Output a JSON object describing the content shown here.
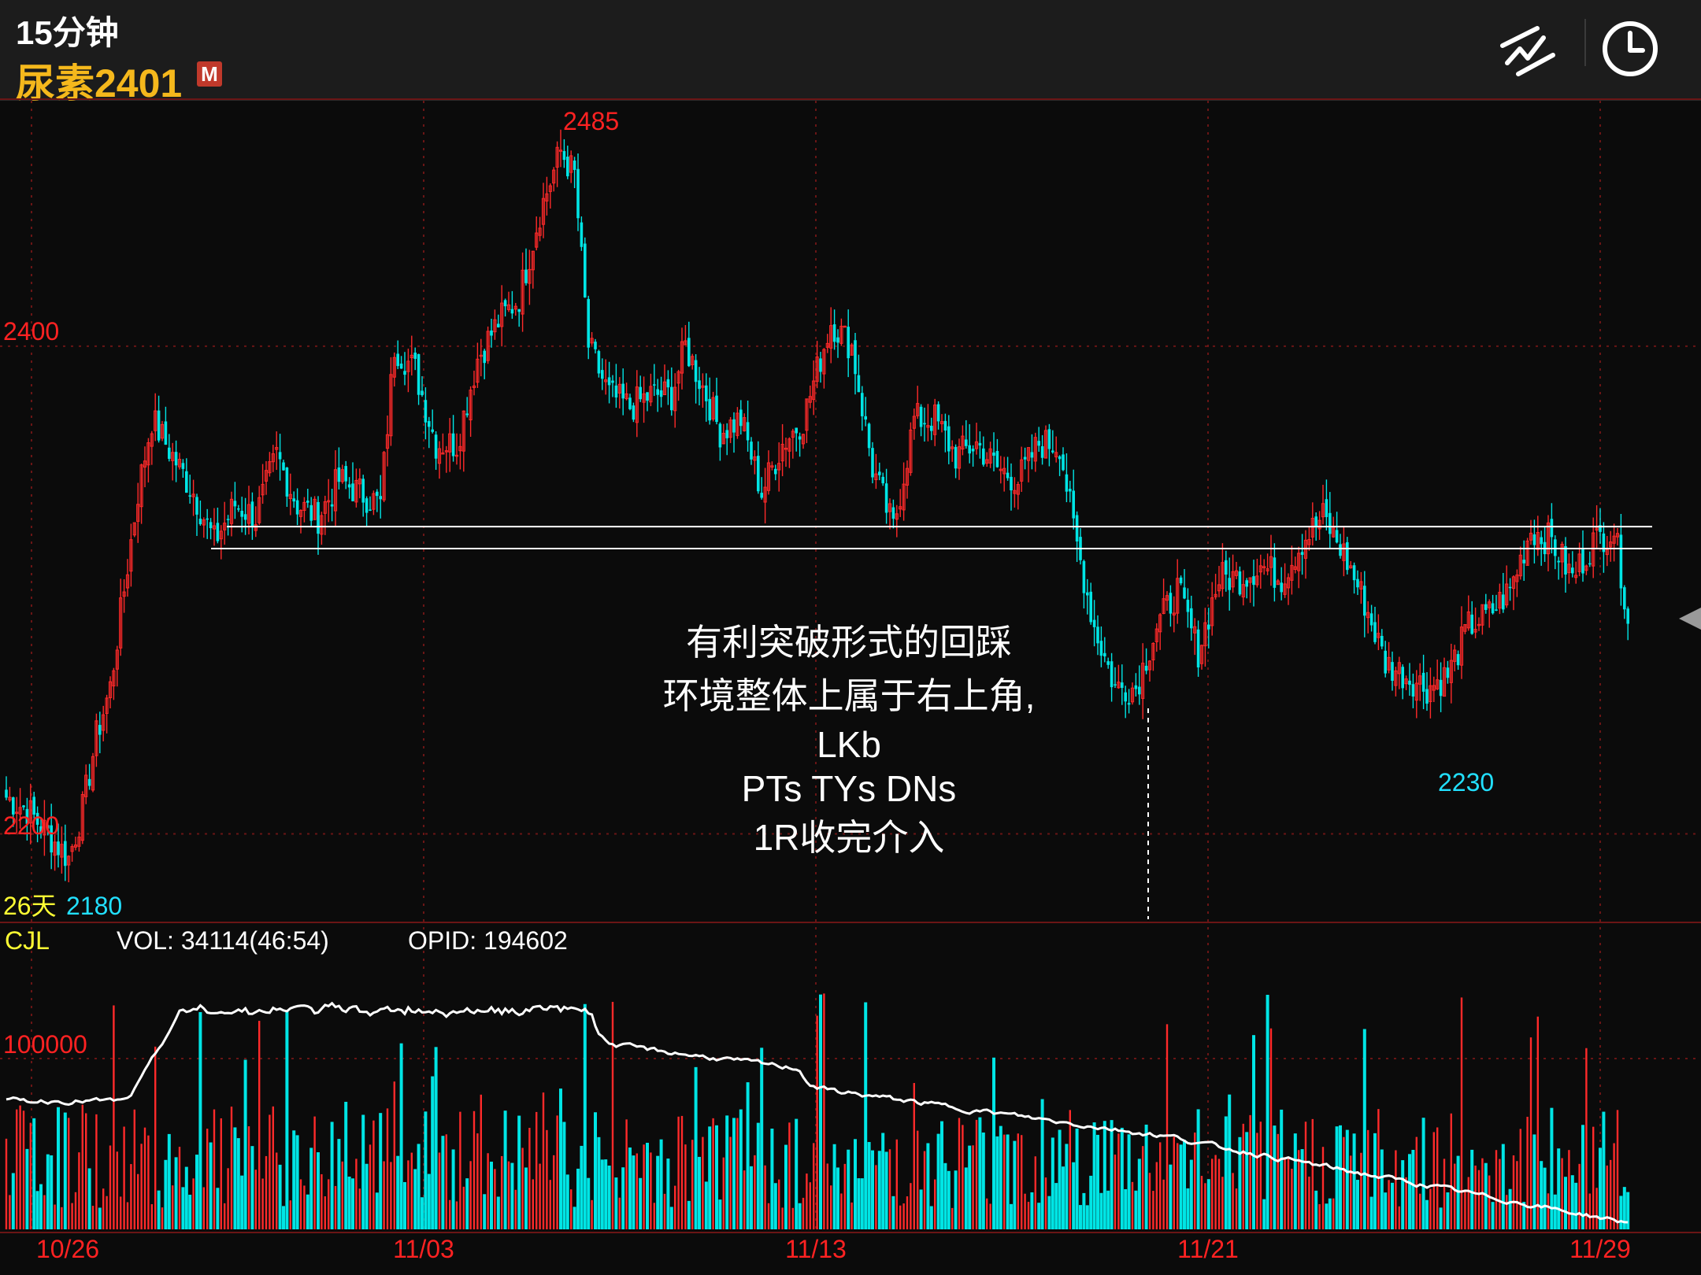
{
  "header": {
    "period": "15分钟",
    "symbol": "尿素2401",
    "badge": "M",
    "draw_icon": "trendline-drawing-icon",
    "time_icon": "clock-icon"
  },
  "colors": {
    "up": "#ff2a2a",
    "down": "#00e5e5",
    "grid": "#6a1515",
    "label_red": "#ff2222",
    "label_cyan": "#22e0ff",
    "label_yellow": "#ffff33",
    "white": "#ffffff"
  },
  "price_panel": {
    "high_label": "2485",
    "low_label": "2230",
    "range_days": "26天",
    "range_low": "2180",
    "ylim": [
      2165,
      2500
    ],
    "gridline_values": [
      2400,
      2200
    ],
    "gridline_labels": [
      "2400",
      "2200"
    ],
    "support_line_upper": 2326,
    "support_line_lower": 2317
  },
  "annotation": [
    "有利突破形式的回踩",
    "环境整体上属于右上角,",
    "LKb",
    "PTs TYs DNs",
    "1R收完介入"
  ],
  "volume_panel": {
    "name": "CJL",
    "vol_text": "VOL: 34114(46:54)",
    "opid_text": "OPID: 194602",
    "gridline_label": "100000"
  },
  "chart_data": {
    "type": "candlestick",
    "x_labels": [
      "10/26",
      "11/03",
      "11/13",
      "11/21",
      "11/29"
    ],
    "price_anchors": [
      [
        0,
        2215
      ],
      [
        6,
        2210
      ],
      [
        12,
        2200
      ],
      [
        18,
        2190
      ],
      [
        22,
        2210
      ],
      [
        26,
        2240
      ],
      [
        30,
        2260
      ],
      [
        34,
        2300
      ],
      [
        38,
        2340
      ],
      [
        42,
        2370
      ],
      [
        48,
        2355
      ],
      [
        54,
        2340
      ],
      [
        60,
        2320
      ],
      [
        66,
        2335
      ],
      [
        72,
        2330
      ],
      [
        78,
        2355
      ],
      [
        84,
        2335
      ],
      [
        90,
        2330
      ],
      [
        96,
        2345
      ],
      [
        102,
        2340
      ],
      [
        108,
        2335
      ],
      [
        112,
        2400
      ],
      [
        118,
        2390
      ],
      [
        124,
        2360
      ],
      [
        130,
        2360
      ],
      [
        136,
        2395
      ],
      [
        142,
        2410
      ],
      [
        148,
        2420
      ],
      [
        154,
        2455
      ],
      [
        160,
        2480
      ],
      [
        164,
        2470
      ],
      [
        168,
        2400
      ],
      [
        174,
        2380
      ],
      [
        180,
        2375
      ],
      [
        186,
        2380
      ],
      [
        192,
        2380
      ],
      [
        196,
        2400
      ],
      [
        202,
        2380
      ],
      [
        206,
        2365
      ],
      [
        212,
        2370
      ],
      [
        218,
        2340
      ],
      [
        224,
        2360
      ],
      [
        230,
        2370
      ],
      [
        238,
        2410
      ],
      [
        244,
        2400
      ],
      [
        250,
        2350
      ],
      [
        256,
        2325
      ],
      [
        262,
        2370
      ],
      [
        268,
        2370
      ],
      [
        274,
        2355
      ],
      [
        280,
        2360
      ],
      [
        286,
        2350
      ],
      [
        292,
        2345
      ],
      [
        298,
        2360
      ],
      [
        304,
        2360
      ],
      [
        308,
        2325
      ],
      [
        314,
        2285
      ],
      [
        320,
        2260
      ],
      [
        326,
        2260
      ],
      [
        332,
        2285
      ],
      [
        338,
        2300
      ],
      [
        344,
        2275
      ],
      [
        350,
        2305
      ],
      [
        356,
        2305
      ],
      [
        362,
        2310
      ],
      [
        368,
        2305
      ],
      [
        374,
        2320
      ],
      [
        380,
        2330
      ],
      [
        386,
        2315
      ],
      [
        392,
        2295
      ],
      [
        398,
        2270
      ],
      [
        404,
        2265
      ],
      [
        410,
        2260
      ],
      [
        416,
        2265
      ],
      [
        422,
        2285
      ],
      [
        428,
        2290
      ],
      [
        434,
        2300
      ],
      [
        440,
        2325
      ],
      [
        446,
        2320
      ],
      [
        452,
        2305
      ],
      [
        458,
        2320
      ],
      [
        464,
        2325
      ],
      [
        468,
        2290
      ]
    ],
    "volume_base": 100000,
    "opid_range": [
      140000,
      215000
    ]
  }
}
